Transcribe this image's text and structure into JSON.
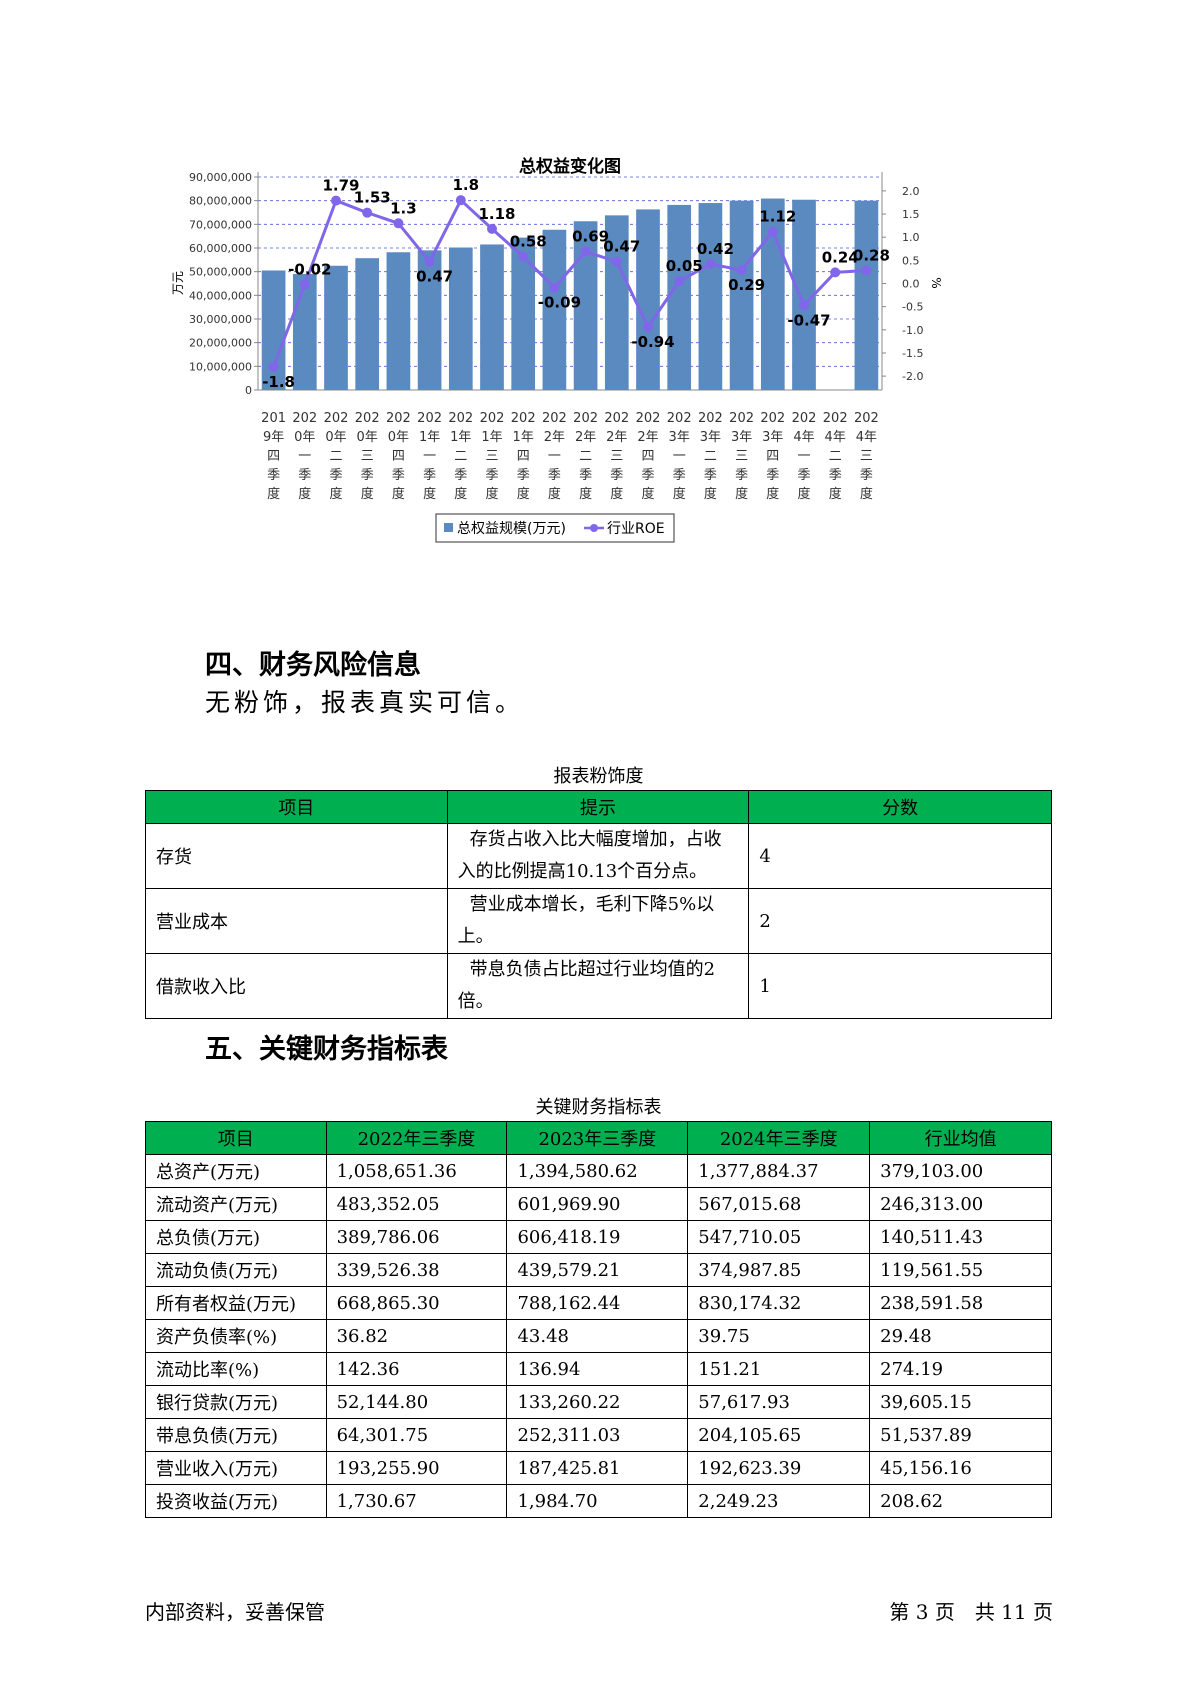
{
  "chart_data": {
    "type": "bar",
    "title": "总权益变化图",
    "ylabel": "万元",
    "y2label": "%",
    "ylim": [
      0,
      90000000
    ],
    "y2lim": [
      -2.3,
      2.3
    ],
    "y_ticks": [
      "0",
      "10,000,000",
      "20,000,000",
      "30,000,000",
      "40,000,000",
      "50,000,000",
      "60,000,000",
      "70,000,000",
      "80,000,000",
      "90,000,000"
    ],
    "y2_ticks": [
      "2.0",
      "1.5",
      "1.0",
      "0.5",
      "0.0",
      "-0.5",
      "-1.0",
      "-1.5",
      "-2.0"
    ],
    "categories": [
      "2019年四季度",
      "2020年一季度",
      "2020年二季度",
      "2020年三季度",
      "2020年四季度",
      "2021年一季度",
      "2021年二季度",
      "2021年三季度",
      "2021年四季度",
      "2022年一季度",
      "2022年二季度",
      "2022年三季度",
      "2022年四季度",
      "2023年一季度",
      "2023年二季度",
      "2023年三季度",
      "2023年四季度",
      "2024年一季度",
      "2024年二季度",
      "2024年三季度"
    ],
    "legend_position": "bottom",
    "series": [
      {
        "name": "总权益规模(万元)",
        "type": "bar",
        "color": "#5b8ac0",
        "values": [
          50500000,
          49000000,
          52500000,
          55700000,
          58200000,
          59000000,
          60200000,
          61500000,
          64400000,
          67700000,
          71300000,
          73800000,
          76300000,
          78200000,
          79000000,
          80000000,
          80900000,
          80400000,
          null,
          80000000
        ]
      },
      {
        "name": "行业ROE",
        "type": "line",
        "color": "#8066e8",
        "values": [
          -1.8,
          -0.02,
          1.79,
          1.53,
          1.3,
          0.47,
          1.8,
          1.18,
          0.58,
          -0.09,
          0.69,
          0.47,
          -0.94,
          0.05,
          0.42,
          0.29,
          1.12,
          -0.47,
          0.24,
          0.28
        ],
        "labels": [
          "-1.8",
          "-0.02",
          "1.79",
          "1.53",
          "1.3",
          "0.47",
          "1.8",
          "1.18",
          "0.58",
          "-0.09",
          "0.69",
          "0.47",
          "-0.94",
          "0.05",
          "0.42",
          "0.29",
          "1.12",
          "-0.47",
          "0.24",
          "0.28"
        ]
      }
    ]
  },
  "section4": {
    "heading": "四、财务风险信息",
    "summary": "无粉饰，报表真实可信。",
    "table_caption": "报表粉饰度",
    "headers": [
      "项目",
      "提示",
      "分数"
    ],
    "rows": [
      [
        "存货",
        "存货占收入比大幅度增加，占收入的比例提高10.13个百分点。",
        "4"
      ],
      [
        "营业成本",
        "营业成本增长，毛利下降5%以上。",
        "2"
      ],
      [
        "借款收入比",
        "带息负债占比超过行业均值的2倍。",
        "1"
      ]
    ]
  },
  "section5": {
    "heading": "五、关键财务指标表",
    "table_caption": "关键财务指标表",
    "headers": [
      "项目",
      "2022年三季度",
      "2023年三季度",
      "2024年三季度",
      "行业均值"
    ],
    "rows": [
      [
        "总资产(万元)",
        "1,058,651.36",
        "1,394,580.62",
        "1,377,884.37",
        "379,103.00"
      ],
      [
        "流动资产(万元)",
        "483,352.05",
        "601,969.90",
        "567,015.68",
        "246,313.00"
      ],
      [
        "总负债(万元)",
        "389,786.06",
        "606,418.19",
        "547,710.05",
        "140,511.43"
      ],
      [
        "流动负债(万元)",
        "339,526.38",
        "439,579.21",
        "374,987.85",
        "119,561.55"
      ],
      [
        "所有者权益(万元)",
        "668,865.30",
        "788,162.44",
        "830,174.32",
        "238,591.58"
      ],
      [
        "资产负债率(%)",
        "36.82",
        "43.48",
        "39.75",
        "29.48"
      ],
      [
        "流动比率(%)",
        "142.36",
        "136.94",
        "151.21",
        "274.19"
      ],
      [
        "银行贷款(万元)",
        "52,144.80",
        "133,260.22",
        "57,617.93",
        "39,605.15"
      ],
      [
        "带息负债(万元)",
        "64,301.75",
        "252,311.03",
        "204,105.65",
        "51,537.89"
      ],
      [
        "营业收入(万元)",
        "193,255.90",
        "187,425.81",
        "192,623.39",
        "45,156.16"
      ],
      [
        "投资收益(万元)",
        "1,730.67",
        "1,984.70",
        "2,249.23",
        "208.62"
      ]
    ]
  },
  "footer": {
    "left": "内部资料，妥善保管",
    "right": "第 3 页　共 11 页"
  }
}
